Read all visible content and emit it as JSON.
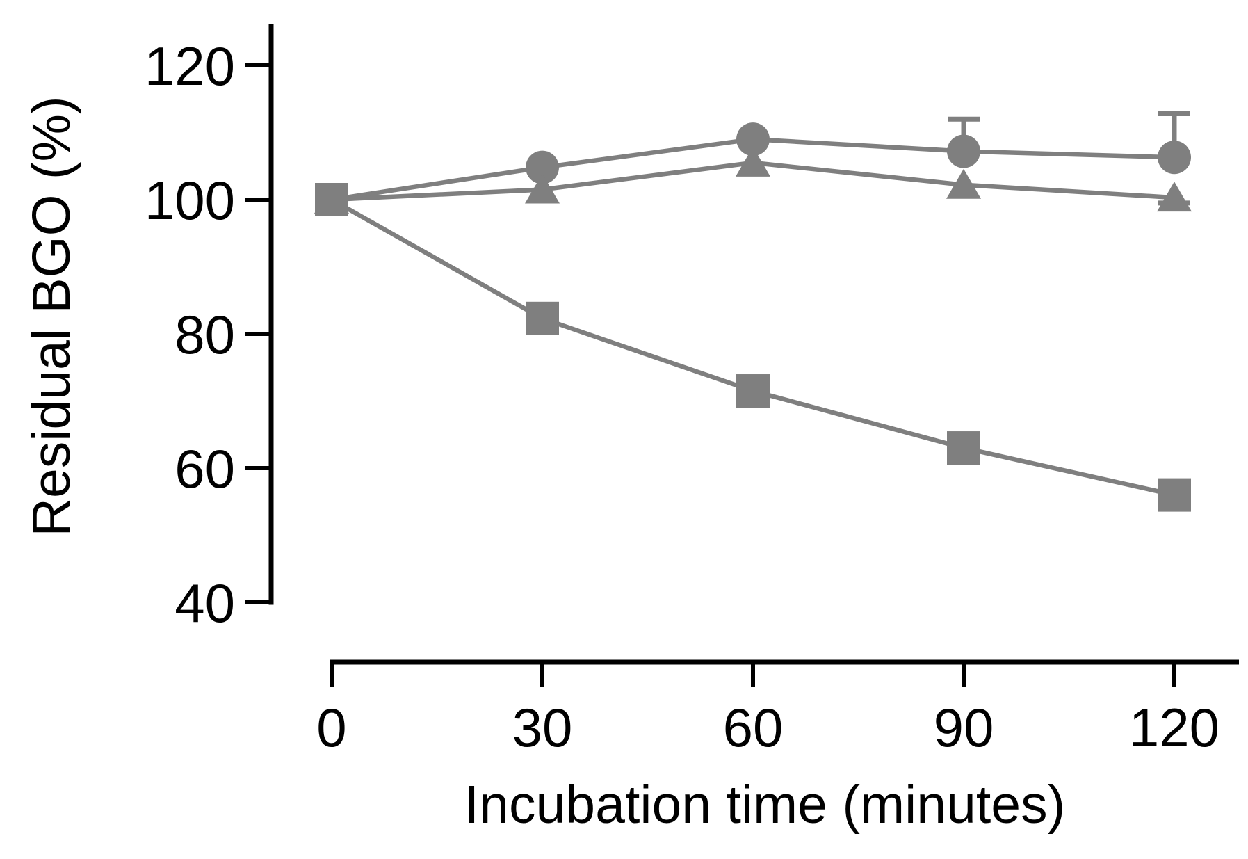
{
  "figure": {
    "background_color": "#ffffff",
    "axis_color": "#000000",
    "series_color": "#7f7f7f"
  },
  "chart_data": {
    "type": "line",
    "title": "",
    "xlabel": "Incubation time (minutes)",
    "ylabel": "Residual BGO (%)",
    "x_ticks": [
      0,
      30,
      60,
      90,
      120
    ],
    "y_ticks": [
      120,
      100,
      80,
      60,
      40
    ],
    "xlim": [
      0,
      129
    ],
    "ylim": [
      40,
      126
    ],
    "grid": false,
    "legend": null,
    "x": [
      0,
      30,
      60,
      90,
      120
    ],
    "series": [
      {
        "name": "circle-series",
        "marker": "circle",
        "color": "#7f7f7f",
        "values": [
          100,
          104.8,
          109,
          107.2,
          106.3
        ],
        "err_plus": [
          0,
          0,
          0,
          4.8,
          6.5
        ],
        "err_minus": [
          0,
          0,
          0,
          0,
          0
        ]
      },
      {
        "name": "triangle-series",
        "marker": "triangle",
        "color": "#7f7f7f",
        "values": [
          100,
          101.5,
          105.5,
          102.2,
          100.3
        ],
        "err_plus": [
          0,
          0,
          0,
          0,
          0
        ],
        "err_minus": [
          0,
          0,
          0,
          0,
          0.8
        ]
      },
      {
        "name": "square-series",
        "marker": "square",
        "color": "#7f7f7f",
        "values": [
          100,
          82.3,
          71.5,
          63,
          56
        ],
        "err_plus": [
          0,
          0,
          0,
          0,
          0
        ],
        "err_minus": [
          0,
          0,
          0,
          0,
          0
        ]
      }
    ]
  }
}
